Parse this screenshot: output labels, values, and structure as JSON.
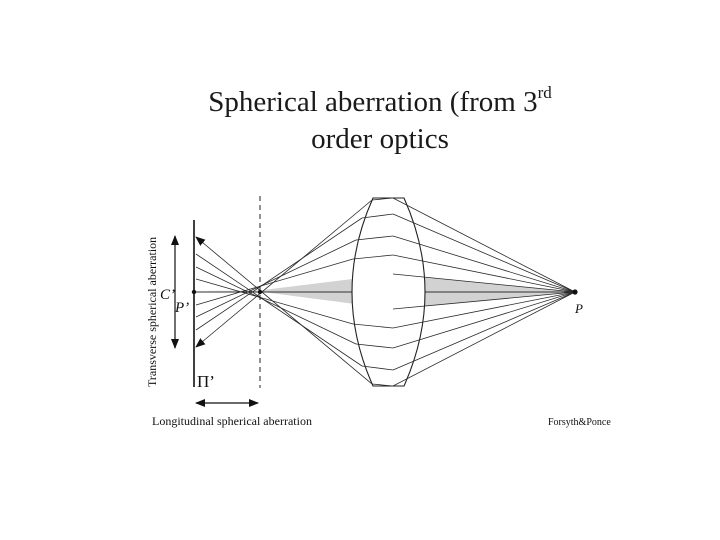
{
  "slide": {
    "title_part1": "Spherical aberration (from 3",
    "title_superscript": "rd",
    "title_line2": "order optics"
  },
  "diagram": {
    "labels": {
      "point_c": "C’",
      "point_p_prime": "P’",
      "point_p": "P",
      "plane": "Π’",
      "transverse": "Transverse spherical aberration",
      "longitudinal": "Longitudinal spherical aberration",
      "credit": "Forsyth&Ponce"
    },
    "colors": {
      "ray": "#2a2a2a",
      "shaded_region": "#d2d2d2",
      "background": "#ffffff"
    }
  }
}
